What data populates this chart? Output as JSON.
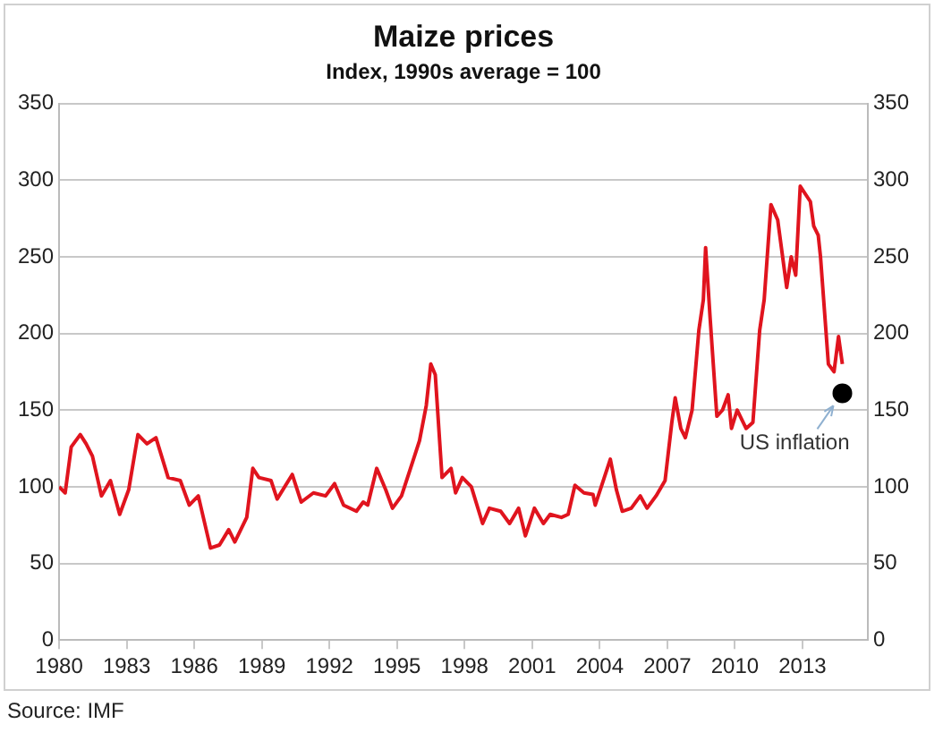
{
  "chart_data": {
    "type": "line",
    "title": "Maize prices",
    "subtitle": "Index, 1990s average = 100",
    "xlim": [
      1980,
      2015.9
    ],
    "xticks": [
      1980,
      1983,
      1986,
      1989,
      1992,
      1995,
      1998,
      2001,
      2004,
      2007,
      2010,
      2013
    ],
    "ylim": [
      0,
      350
    ],
    "yticks": [
      0,
      50,
      100,
      150,
      200,
      250,
      300,
      350
    ],
    "y2lim": [
      0,
      350
    ],
    "y2ticks": [
      0,
      50,
      100,
      150,
      200,
      250,
      300,
      350
    ],
    "grid": "y",
    "legend": false,
    "line_style": "solid",
    "series": [
      {
        "type": "line",
        "color": "#e0141e",
        "marker": "none",
        "x": [
          1980,
          1980.27,
          1980.54,
          1980.94,
          1981.2,
          1981.48,
          1981.88,
          1982.28,
          1982.69,
          1983.09,
          1983.5,
          1983.9,
          1984.3,
          1984.84,
          1985.38,
          1985.78,
          1986.18,
          1986.72,
          1987.12,
          1987.53,
          1987.8,
          1988.33,
          1988.6,
          1988.87,
          1989.41,
          1989.68,
          1990.35,
          1990.75,
          1991.29,
          1991.83,
          1992.23,
          1992.63,
          1993.2,
          1993.5,
          1993.7,
          1994.1,
          1994.5,
          1994.8,
          1995.2,
          1995.6,
          1996.0,
          1996.3,
          1996.5,
          1996.7,
          1997.0,
          1997.4,
          1997.6,
          1997.9,
          1998.3,
          1998.8,
          1999.1,
          1999.6,
          2000.0,
          2000.4,
          2000.7,
          2001.1,
          2001.5,
          2001.8,
          2002.3,
          2002.6,
          2002.9,
          2003.3,
          2003.7,
          2003.8,
          2004.47,
          2004.74,
          2005.0,
          2005.4,
          2005.8,
          2006.1,
          2006.5,
          2006.9,
          2007.2,
          2007.35,
          2007.6,
          2007.8,
          2008.1,
          2008.4,
          2008.6,
          2008.7,
          2008.9,
          2009.2,
          2009.45,
          2009.7,
          2009.85,
          2010.1,
          2010.5,
          2010.8,
          2011.1,
          2011.3,
          2011.6,
          2011.9,
          2012.3,
          2012.5,
          2012.7,
          2012.9,
          2013.35,
          2013.5,
          2013.7,
          2013.8,
          2014.15,
          2014.4,
          2014.6,
          2014.77
        ],
        "values": [
          100,
          96,
          126,
          134,
          128,
          120,
          94,
          104,
          82,
          98,
          134,
          128,
          132,
          106,
          104,
          88,
          94,
          60,
          62,
          72,
          64,
          80,
          112,
          106,
          104,
          92,
          108,
          90,
          96,
          94,
          102,
          88,
          84,
          90,
          88,
          112,
          98,
          86,
          94,
          112,
          130,
          153,
          180,
          173,
          106,
          112,
          96,
          106,
          100,
          76,
          86,
          84,
          76,
          86,
          68,
          86,
          76,
          82,
          80,
          82,
          101,
          96,
          95,
          88,
          118,
          98,
          84,
          86,
          94,
          86,
          94,
          104,
          142,
          158,
          138,
          132,
          150,
          202,
          222,
          256,
          210,
          146,
          150,
          160,
          138,
          150,
          138,
          142,
          202,
          222,
          284,
          274,
          230,
          250,
          238,
          296,
          286,
          270,
          264,
          250,
          180,
          175,
          198,
          180
        ]
      },
      {
        "type": "scatter",
        "color": "#000000",
        "marker": "circle",
        "x": [
          2014.77
        ],
        "values": [
          161
        ]
      }
    ],
    "annotations": [
      {
        "text": "US inflation",
        "x": 2014.77,
        "y": 161
      },
      "Source: IMF"
    ]
  }
}
